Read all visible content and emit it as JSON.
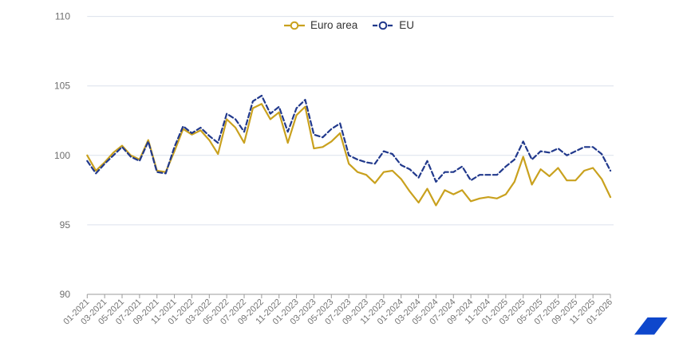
{
  "chart_data": {
    "type": "line",
    "title": "",
    "categories": [
      "01-2021",
      "02-2021",
      "03-2021",
      "04-2021",
      "05-2021",
      "06-2021",
      "07-2021",
      "08-2021",
      "09-2021",
      "10-2021",
      "11-2021",
      "12-2021",
      "01-2022",
      "02-2022",
      "03-2022",
      "04-2022",
      "05-2022",
      "06-2022",
      "07-2022",
      "08-2022",
      "09-2022",
      "10-2022",
      "11-2022",
      "12-2022",
      "01-2023",
      "02-2023",
      "03-2023",
      "04-2023",
      "05-2023",
      "06-2023",
      "07-2023",
      "08-2023",
      "09-2023",
      "10-2023",
      "11-2023",
      "12-2023",
      "01-2024",
      "02-2024",
      "03-2024",
      "04-2024",
      "05-2024",
      "06-2024",
      "07-2024",
      "08-2024",
      "09-2024",
      "10-2024",
      "11-2024",
      "12-2024",
      "01-2025",
      "02-2025",
      "03-2025",
      "04-2025",
      "05-2025",
      "06-2025",
      "07-2025",
      "08-2025",
      "09-2025",
      "10-2025",
      "11-2025",
      "12-2025",
      "01-2026"
    ],
    "x_tick_labels": [
      "01-2021",
      "03-2021",
      "05-2021",
      "07-2021",
      "09-2021",
      "11-2021",
      "01-2022",
      "03-2022",
      "05-2022",
      "07-2022",
      "09-2022",
      "11-2022",
      "01-2023",
      "03-2023",
      "05-2023",
      "07-2023",
      "09-2023",
      "11-2023",
      "01-2024",
      "03-2024",
      "05-2024",
      "07-2024",
      "09-2024",
      "11-2024",
      "01-2025",
      "03-2025",
      "05-2025",
      "07-2025",
      "09-2025",
      "11-2025",
      "01-2026"
    ],
    "yticks": [
      110,
      105,
      100,
      95,
      90
    ],
    "ylim": [
      90,
      110
    ],
    "grid": true,
    "legend_position": "top-center",
    "series": [
      {
        "name": "Euro area",
        "color": "#C9A11E",
        "dash": "solid",
        "values": [
          100.0,
          98.9,
          99.5,
          100.2,
          100.7,
          100.0,
          99.7,
          101.1,
          98.9,
          98.8,
          100.3,
          101.9,
          101.5,
          101.8,
          101.1,
          100.1,
          102.6,
          102.0,
          100.9,
          103.4,
          103.7,
          102.6,
          103.1,
          100.9,
          102.9,
          103.5,
          100.5,
          100.6,
          101.0,
          101.6,
          99.4,
          98.8,
          98.6,
          98.0,
          98.8,
          98.9,
          98.3,
          97.4,
          96.6,
          97.6,
          96.4,
          97.5,
          97.2,
          97.5,
          96.7,
          96.9,
          97.0,
          96.9,
          97.2,
          98.1,
          99.9,
          97.9,
          99.0,
          98.5,
          99.1,
          98.2,
          98.2,
          98.9,
          99.1,
          98.3,
          97.0
        ]
      },
      {
        "name": "EU",
        "color": "#21398C",
        "dash": "dashed",
        "values": [
          99.6,
          98.7,
          99.4,
          100.0,
          100.6,
          99.9,
          99.6,
          101.0,
          98.8,
          98.7,
          100.6,
          102.1,
          101.6,
          102.0,
          101.4,
          100.9,
          103.0,
          102.6,
          101.7,
          103.9,
          104.3,
          103.0,
          103.5,
          101.7,
          103.4,
          104.0,
          101.5,
          101.3,
          101.9,
          102.3,
          100.0,
          99.7,
          99.5,
          99.4,
          100.3,
          100.1,
          99.3,
          99.0,
          98.4,
          99.6,
          98.1,
          98.8,
          98.8,
          99.2,
          98.2,
          98.6,
          98.6,
          98.6,
          99.2,
          99.7,
          101.0,
          99.7,
          100.3,
          100.2,
          100.5,
          100.0,
          100.3,
          100.6,
          100.6,
          100.1,
          98.9
        ]
      }
    ]
  },
  "colors": {
    "background": "#FFFFFF",
    "grid": "#DCE1EC",
    "axis": "#9B9B9B",
    "tick_label": "#757575",
    "y_label": "#6E6E6E",
    "legend_text": "#333333",
    "logo": "#0E47CC"
  },
  "logo": {
    "shape": "parallelogram"
  }
}
